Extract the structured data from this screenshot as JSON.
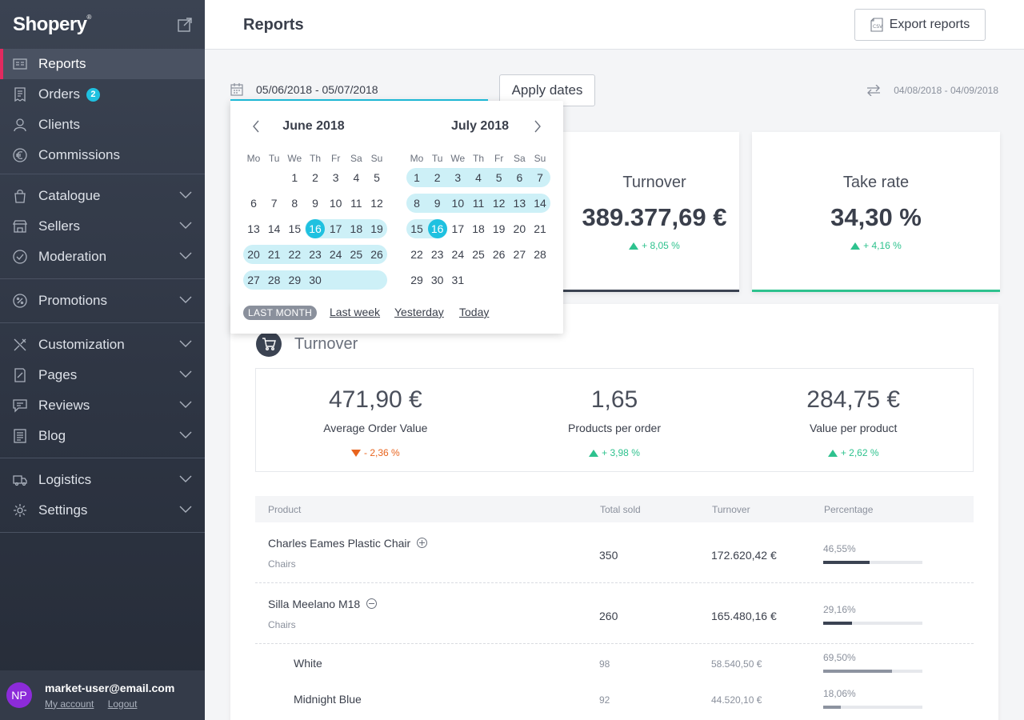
{
  "sidebar": {
    "logo": "Shopery",
    "logo_mark": "®",
    "groups": [
      [
        {
          "label": "Reports",
          "icon": "reports-icon",
          "active": true
        },
        {
          "label": "Orders",
          "icon": "orders-icon",
          "badge": "2"
        },
        {
          "label": "Clients",
          "icon": "clients-icon"
        },
        {
          "label": "Commissions",
          "icon": "euro-icon"
        }
      ],
      [
        {
          "label": "Catalogue",
          "icon": "bag-icon",
          "chevron": true
        },
        {
          "label": "Sellers",
          "icon": "sellers-icon",
          "chevron": true
        },
        {
          "label": "Moderation",
          "icon": "check-circle-icon",
          "chevron": true
        }
      ],
      [
        {
          "label": "Promotions",
          "icon": "percent-icon",
          "chevron": true
        }
      ],
      [
        {
          "label": "Customization",
          "icon": "tools-icon",
          "chevron": true
        },
        {
          "label": "Pages",
          "icon": "pages-icon",
          "chevron": true
        },
        {
          "label": "Reviews",
          "icon": "reviews-icon",
          "chevron": true
        },
        {
          "label": "Blog",
          "icon": "blog-icon",
          "chevron": true
        }
      ],
      [
        {
          "label": "Logistics",
          "icon": "truck-icon",
          "chevron": true
        },
        {
          "label": "Settings",
          "icon": "gear-icon",
          "chevron": true
        }
      ]
    ]
  },
  "user": {
    "initials": "NP",
    "email": "market-user@email.com",
    "my_account": "My account",
    "logout": "Logout"
  },
  "header": {
    "title": "Reports",
    "export_label": "Export reports"
  },
  "date_filter": {
    "range_text": "05/06/2018  -  05/07/2018",
    "apply_label": "Apply dates",
    "compare_text": "04/08/2018  -  04/09/2018"
  },
  "calendar": {
    "weekdays": [
      "Mo",
      "Tu",
      "We",
      "Th",
      "Fr",
      "Sa",
      "Su"
    ],
    "months": [
      {
        "title": "June 2018",
        "start_offset": 2,
        "days": 30,
        "range_from": 16,
        "range_to": 30,
        "selected": 16
      },
      {
        "title": "July 2018",
        "start_offset": 0,
        "days": 31,
        "range_from": 1,
        "range_to": 16,
        "selected": 16,
        "leading_range": true
      }
    ],
    "quick_active": "LAST MONTH",
    "quick_links": [
      "Last week",
      "Yesterday",
      "Today"
    ]
  },
  "kpis": [
    {
      "label": "Turnover",
      "value": "389.377,69 €",
      "delta": "+ 8,05 %"
    },
    {
      "label": "Take rate",
      "value": "34,30 %",
      "delta": "+ 4,16 %"
    }
  ],
  "turnover": {
    "title": "Turnover",
    "stats": [
      {
        "value": "471,90 €",
        "label": "Average Order Value",
        "delta": "- 2,36 %",
        "direction": "down"
      },
      {
        "value": "1,65",
        "label": "Products per order",
        "delta": "+ 3,98 %",
        "direction": "up"
      },
      {
        "value": "284,75 €",
        "label": "Value per product",
        "delta": "+ 2,62 %",
        "direction": "up"
      }
    ],
    "columns": [
      "Product",
      "Total sold",
      "Turnover",
      "Percentage"
    ],
    "rows": [
      {
        "name": "Charles Eames Plastic Chair",
        "category": "Chairs",
        "sold": "350",
        "turnover": "172.620,42 €",
        "pct": "46,55%",
        "pct_value": 0.4655,
        "toggle": "plus"
      },
      {
        "name": "Silla Meelano M18",
        "category": "Chairs",
        "sold": "260",
        "turnover": "165.480,16 €",
        "pct": "29,16%",
        "pct_value": 0.2916,
        "toggle": "minus"
      }
    ],
    "subrows": [
      {
        "name": "White",
        "sold": "98",
        "turnover": "58.540,50 €",
        "pct": "69,50%",
        "pct_value": 0.695
      },
      {
        "name": "Midnight Blue",
        "sold": "92",
        "turnover": "44.520,10 €",
        "pct": "18,06%",
        "pct_value": 0.1806
      }
    ]
  }
}
